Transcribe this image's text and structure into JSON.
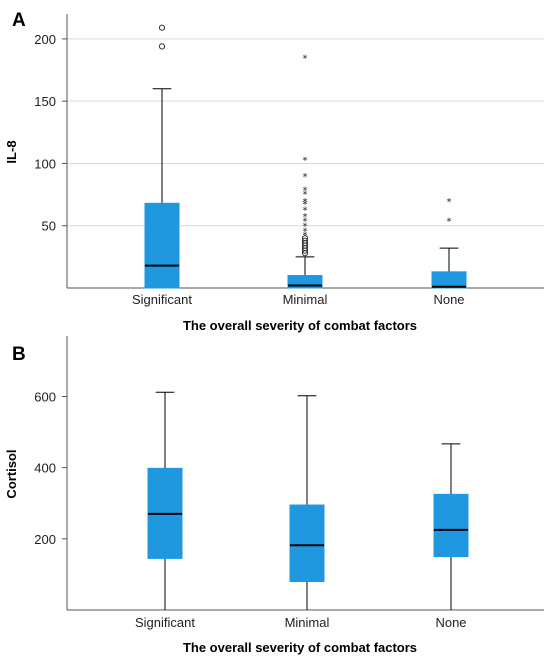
{
  "colors": {
    "box": "#1f98e0",
    "axis": "#555555",
    "grid": "#d9d9d9",
    "whisker": "#000000",
    "median": "#000000"
  },
  "chart_data": [
    {
      "type": "box",
      "panel_label": "A",
      "ylabel": "IL-8",
      "xlabel": "The overall severity of combat factors",
      "ylim": [
        0,
        220
      ],
      "yticks": [
        50,
        100,
        150,
        200
      ],
      "grid": true,
      "categories": [
        "Significant",
        "Minimal",
        "None"
      ],
      "boxes": [
        {
          "category": "Significant",
          "whisker_low": 0,
          "q1": 0,
          "median": 18,
          "q3": 68,
          "whisker_high": 160,
          "outliers": [
            {
              "y": 194,
              "marker": "o"
            },
            {
              "y": 209,
              "marker": "o"
            }
          ]
        },
        {
          "category": "Minimal",
          "whisker_low": 0,
          "q1": 0,
          "median": 2,
          "q3": 10,
          "whisker_high": 25,
          "outliers": [
            {
              "y": 28,
              "marker": "o"
            },
            {
              "y": 30,
              "marker": "o"
            },
            {
              "y": 32,
              "marker": "o"
            },
            {
              "y": 34,
              "marker": "o"
            },
            {
              "y": 36,
              "marker": "o"
            },
            {
              "y": 38,
              "marker": "o"
            },
            {
              "y": 40,
              "marker": "o"
            },
            {
              "y": 43,
              "marker": "*"
            },
            {
              "y": 46,
              "marker": "*"
            },
            {
              "y": 50,
              "marker": "*"
            },
            {
              "y": 54,
              "marker": "*"
            },
            {
              "y": 58,
              "marker": "*"
            },
            {
              "y": 63,
              "marker": "*"
            },
            {
              "y": 68,
              "marker": "*"
            },
            {
              "y": 70,
              "marker": "*"
            },
            {
              "y": 76,
              "marker": "*"
            },
            {
              "y": 79,
              "marker": "*"
            },
            {
              "y": 90,
              "marker": "*"
            },
            {
              "y": 103,
              "marker": "*"
            },
            {
              "y": 185,
              "marker": "*"
            }
          ]
        },
        {
          "category": "None",
          "whisker_low": 0,
          "q1": 0,
          "median": 1,
          "q3": 13,
          "whisker_high": 32,
          "outliers": [
            {
              "y": 54,
              "marker": "*"
            },
            {
              "y": 70,
              "marker": "*"
            }
          ]
        }
      ]
    },
    {
      "type": "box",
      "panel_label": "B",
      "ylabel": "Cortisol",
      "xlabel": "The overall severity of combat factors",
      "ylim": [
        0,
        770
      ],
      "yticks": [
        200,
        400,
        600
      ],
      "grid": false,
      "categories": [
        "Significant",
        "Minimal",
        "None"
      ],
      "boxes": [
        {
          "category": "Significant",
          "whisker_low": 0,
          "q1": 145,
          "median": 270,
          "q3": 398,
          "whisker_high": 612,
          "outliers": []
        },
        {
          "category": "Minimal",
          "whisker_low": 0,
          "q1": 80,
          "median": 182,
          "q3": 295,
          "whisker_high": 602,
          "outliers": []
        },
        {
          "category": "None",
          "whisker_low": 0,
          "q1": 150,
          "median": 225,
          "q3": 325,
          "whisker_high": 467,
          "outliers": []
        }
      ]
    }
  ]
}
